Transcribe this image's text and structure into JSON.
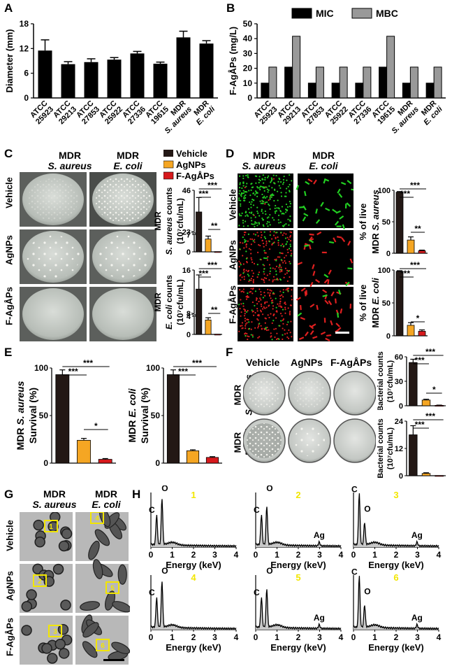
{
  "panel_letters": [
    "A",
    "B",
    "C",
    "D",
    "E",
    "F",
    "G",
    "H"
  ],
  "strains": [
    "ATCC 25923",
    "ATCC 29213",
    "ATCC 27853",
    "ATCC 25922",
    "ATCC 27336",
    "ATCC 19615",
    "MDR S. aureus",
    "MDR E. coli"
  ],
  "treatments": [
    "Vehicle",
    "AgNPs",
    "F-AgÅPs"
  ],
  "treatment_colors": {
    "Vehicle": "#231815",
    "AgNPs": "#f5a623",
    "F-AgÅPs": "#d7191c"
  },
  "col_mdr": "MDR",
  "col_sa": "S. aureus",
  "col_ec": "E. coli",
  "tem_boxes": [
    "1",
    "2",
    "3",
    "4",
    "5",
    "6"
  ],
  "chart_data": [
    {
      "id": "A",
      "type": "bar",
      "ylabel": "Diameter (mm)",
      "ylim": [
        0,
        18
      ],
      "yticks": [
        0,
        6,
        12,
        18
      ],
      "categories": [
        "ATCC 25923",
        "ATCC 29213",
        "ATCC 27853",
        "ATCC 25922",
        "ATCC 27336",
        "ATCC 19615",
        "MDR S. aureus",
        "MDR E. coli"
      ],
      "values": [
        11.5,
        8.2,
        8.7,
        9.3,
        10.8,
        8.3,
        14.7,
        13.2
      ],
      "errors": [
        2.6,
        0.6,
        0.8,
        0.5,
        0.5,
        0.4,
        1.5,
        0.7
      ]
    },
    {
      "id": "B",
      "type": "bar",
      "ylabel": "F-AgÅPs (mg/L)",
      "ylim": [
        0,
        50
      ],
      "yticks": [
        0,
        10,
        20,
        30,
        40,
        50
      ],
      "categories": [
        "ATCC 25923",
        "ATCC 29213",
        "ATCC 27853",
        "ATCC 25922",
        "ATCC 27336",
        "ATCC 19615",
        "MDR S. aureus",
        "MDR E. coli"
      ],
      "series": [
        {
          "name": "MIC",
          "values": [
            10,
            20.8,
            10,
            10,
            10,
            20.8,
            10,
            10
          ]
        },
        {
          "name": "MBC",
          "values": [
            20.8,
            41.6,
            20.8,
            20.8,
            20.8,
            41.6,
            20.8,
            20.8
          ]
        }
      ]
    },
    {
      "id": "C-top",
      "type": "bar",
      "ylabel": "MDR S. aureus counts (10⁷cfu/mL)",
      "yticks": [
        0,
        7,
        23,
        46
      ],
      "categories": [
        "Vehicle",
        "AgNPs",
        "F-AgÅPs"
      ],
      "values": [
        34,
        5.2,
        0.1
      ],
      "errors": [
        8,
        1.2,
        0.05
      ],
      "sig": [
        "***",
        "***",
        "**"
      ]
    },
    {
      "id": "C-bottom",
      "type": "bar",
      "ylabel": "MDR E. coli counts (10⁷cfu/mL)",
      "yticks": [
        0,
        4,
        8,
        16
      ],
      "categories": [
        "Vehicle",
        "AgNPs",
        "F-AgÅPs"
      ],
      "values": [
        12.5,
        3.2,
        0.05
      ],
      "errors": [
        2.6,
        0.5,
        0.05
      ],
      "sig": [
        "***",
        "***",
        "**"
      ]
    },
    {
      "id": "D-top",
      "type": "bar",
      "ylabel": "% of live MDR S. aureus",
      "ylim": [
        0,
        100
      ],
      "yticks": [
        0,
        50,
        100
      ],
      "categories": [
        "Vehicle",
        "AgNPs",
        "F-AgÅPs"
      ],
      "values": [
        97,
        21,
        4
      ],
      "errors": [
        1,
        5,
        1
      ],
      "sig": [
        "***",
        "***",
        "**"
      ]
    },
    {
      "id": "D-bottom",
      "type": "bar",
      "ylabel": "% of live MDR E. coli",
      "ylim": [
        0,
        100
      ],
      "yticks": [
        0,
        50,
        100
      ],
      "categories": [
        "Vehicle",
        "AgNPs",
        "F-AgÅPs"
      ],
      "values": [
        98,
        16,
        7
      ],
      "errors": [
        1,
        4,
        2
      ],
      "sig": [
        "***",
        "***",
        "*"
      ]
    },
    {
      "id": "E-left",
      "type": "bar",
      "ylabel": "MDR S. aureus Survival (%)",
      "ylim": [
        0,
        100
      ],
      "yticks": [
        0,
        50,
        100
      ],
      "categories": [
        "Vehicle",
        "AgNPs",
        "F-AgÅPs"
      ],
      "values": [
        93,
        24,
        4
      ],
      "errors": [
        5,
        2,
        0.8
      ],
      "sig": [
        "***",
        "***",
        "*"
      ]
    },
    {
      "id": "E-right",
      "type": "bar",
      "ylabel": "MDR E. coli Survival (%)",
      "ylim": [
        0,
        100
      ],
      "yticks": [
        0,
        50,
        100
      ],
      "categories": [
        "Vehicle",
        "AgNPs",
        "F-AgÅPs"
      ],
      "values": [
        93,
        13,
        6
      ],
      "errors": [
        5,
        1,
        0.8
      ],
      "sig": [
        "***",
        "***"
      ]
    },
    {
      "id": "F-top",
      "type": "bar",
      "ylabel": "Bacterial counts (10⁷cfu/mL)",
      "ylim": [
        0,
        60
      ],
      "yticks": [
        0,
        30,
        60
      ],
      "categories": [
        "Vehicle",
        "AgNPs",
        "F-AgÅPs"
      ],
      "values": [
        53,
        7,
        0.5
      ],
      "errors": [
        4,
        1,
        0.3
      ],
      "sig": [
        "***",
        "***",
        "*"
      ]
    },
    {
      "id": "F-bottom",
      "type": "bar",
      "ylabel": "Bacterial counts (10⁷cfu/mL)",
      "ylim": [
        0,
        24
      ],
      "yticks": [
        0,
        12,
        24
      ],
      "categories": [
        "Vehicle",
        "AgNPs",
        "F-AgÅPs"
      ],
      "values": [
        18,
        1,
        0.1
      ],
      "errors": [
        4,
        0.3,
        0.05
      ],
      "sig": [
        "***",
        "***"
      ]
    },
    {
      "id": "H",
      "type": "line",
      "xlabel": "Energy (keV)",
      "xlim": [
        0,
        4
      ],
      "xticks": [
        0,
        1,
        2,
        3,
        4
      ],
      "spectra": [
        {
          "name": "1",
          "peaks": [
            "C",
            "O"
          ]
        },
        {
          "name": "2",
          "peaks": [
            "C",
            "O",
            "Ag"
          ]
        },
        {
          "name": "3",
          "peaks": [
            "C",
            "O",
            "Ag"
          ]
        },
        {
          "name": "4",
          "peaks": [
            "C",
            "O"
          ]
        },
        {
          "name": "5",
          "peaks": [
            "C",
            "O",
            "Ag"
          ]
        },
        {
          "name": "6",
          "peaks": [
            "C",
            "O",
            "Ag"
          ]
        }
      ]
    }
  ]
}
